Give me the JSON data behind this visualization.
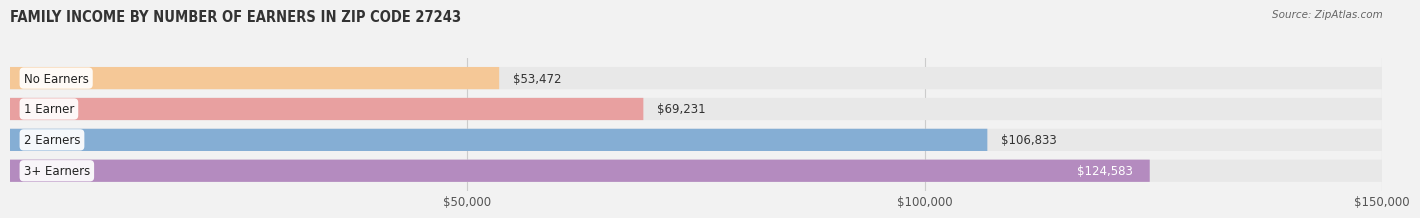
{
  "title": "FAMILY INCOME BY NUMBER OF EARNERS IN ZIP CODE 27243",
  "source": "Source: ZipAtlas.com",
  "categories": [
    "No Earners",
    "1 Earner",
    "2 Earners",
    "3+ Earners"
  ],
  "values": [
    53472,
    69231,
    106833,
    124583
  ],
  "bar_colors": [
    "#f5c897",
    "#e8a0a0",
    "#85aed4",
    "#b48bbf"
  ],
  "label_colors": [
    "#333333",
    "#333333",
    "#333333",
    "#ffffff"
  ],
  "background_color": "#f2f2f2",
  "bar_bg_color": "#e8e8e8",
  "xlim": [
    0,
    150000
  ],
  "xticks": [
    50000,
    100000,
    150000
  ],
  "xtick_labels": [
    "$50,000",
    "$100,000",
    "$150,000"
  ],
  "title_fontsize": 10.5,
  "source_fontsize": 7.5,
  "bar_label_fontsize": 8.5,
  "category_fontsize": 8.5,
  "bar_height": 0.72,
  "fig_width": 14.06,
  "fig_height": 2.33
}
